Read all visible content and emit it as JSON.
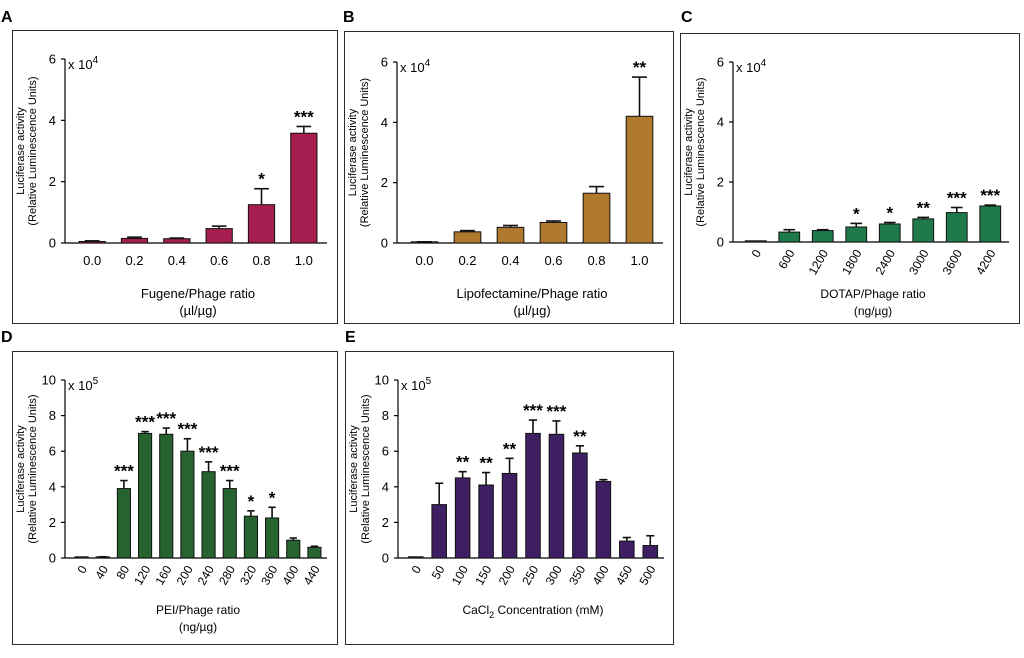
{
  "chart_data": [
    {
      "panel": "A",
      "type": "bar",
      "color": "#a51e4f",
      "categories": [
        "0.0",
        "0.2",
        "0.4",
        "0.6",
        "0.8",
        "1.0"
      ],
      "values": [
        0.05,
        0.15,
        0.14,
        0.47,
        1.25,
        3.58
      ],
      "errors": [
        0.02,
        0.04,
        0.02,
        0.08,
        0.52,
        0.22
      ],
      "significance": [
        "",
        "",
        "",
        "",
        "*",
        "***"
      ],
      "ylim": [
        0,
        6
      ],
      "yticks": [
        "0",
        "2",
        "4",
        "6"
      ],
      "ylabel": "Luciferase activity",
      "ylabel2": "(Relative Luminescence Units)",
      "scale_label": "x 10",
      "scale_exp": "4",
      "xlabel": "Fugene/Phage ratio",
      "xlabel2": "(µl/µg)",
      "rotate_ticks": false
    },
    {
      "panel": "B",
      "type": "bar",
      "color": "#b07a2e",
      "categories": [
        "0.0",
        "0.2",
        "0.4",
        "0.6",
        "0.8",
        "1.0"
      ],
      "values": [
        0.03,
        0.37,
        0.52,
        0.68,
        1.65,
        4.2
      ],
      "errors": [
        0.01,
        0.04,
        0.06,
        0.05,
        0.22,
        1.3
      ],
      "significance": [
        "",
        "",
        "",
        "",
        "",
        "**"
      ],
      "ylim": [
        0,
        6
      ],
      "yticks": [
        "0",
        "2",
        "4",
        "6"
      ],
      "ylabel": "Luciferase activity",
      "ylabel2": "(Relative Luminescence Units)",
      "scale_label": "x 10",
      "scale_exp": "4",
      "xlabel": "Lipofectamine/Phage ratio",
      "xlabel2": "(µl/µg)",
      "rotate_ticks": false
    },
    {
      "panel": "C",
      "type": "bar",
      "color": "#1f7a4a",
      "categories": [
        "0",
        "600",
        "1200",
        "1800",
        "2400",
        "3000",
        "3600",
        "4200"
      ],
      "values": [
        0.0,
        0.33,
        0.38,
        0.5,
        0.6,
        0.77,
        0.98,
        1.2
      ],
      "errors": [
        0.0,
        0.08,
        0.03,
        0.12,
        0.05,
        0.05,
        0.17,
        0.03
      ],
      "significance": [
        "",
        "",
        "",
        "*",
        "*",
        "**",
        "***",
        "***"
      ],
      "ylim": [
        0,
        6
      ],
      "yticks": [
        "0",
        "2",
        "4",
        "6"
      ],
      "ylabel": "Luciferase activity",
      "ylabel2": "(Relative Luminescence Units)",
      "scale_label": "x 10",
      "scale_exp": "4",
      "xlabel": "DOTAP/Phage ratio",
      "xlabel2": "(ng/µg)",
      "rotate_ticks": true
    },
    {
      "panel": "D",
      "type": "bar",
      "color": "#27632f",
      "categories": [
        "0",
        "40",
        "80",
        "120",
        "160",
        "200",
        "240",
        "280",
        "320",
        "360",
        "400",
        "440"
      ],
      "values": [
        0.0,
        0.05,
        3.9,
        7.0,
        6.95,
        6.0,
        4.85,
        3.9,
        2.35,
        2.25,
        1.0,
        0.6
      ],
      "errors": [
        0.0,
        0.02,
        0.45,
        0.1,
        0.35,
        0.7,
        0.55,
        0.45,
        0.3,
        0.6,
        0.12,
        0.06
      ],
      "significance": [
        "",
        "",
        "***",
        "***",
        "***",
        "***",
        "***",
        "***",
        "*",
        "*",
        "",
        ""
      ],
      "ylim": [
        0,
        10
      ],
      "yticks": [
        "0",
        "2",
        "4",
        "6",
        "8",
        "10"
      ],
      "ylabel": "Luciferase activity",
      "ylabel2": "(Relative Luminescence Units)",
      "scale_label": "x 10",
      "scale_exp": "5",
      "xlabel": "PEI/Phage ratio",
      "xlabel2": "(ng/µg)",
      "rotate_ticks": true
    },
    {
      "panel": "E",
      "type": "bar",
      "color": "#3e1f63",
      "categories": [
        "0",
        "50",
        "100",
        "150",
        "200",
        "250",
        "300",
        "350",
        "400",
        "450",
        "500"
      ],
      "values": [
        0.0,
        3.0,
        4.5,
        4.1,
        4.75,
        7.0,
        6.95,
        5.9,
        4.3,
        0.95,
        0.7
      ],
      "errors": [
        0.0,
        1.2,
        0.35,
        0.7,
        0.85,
        0.75,
        0.75,
        0.4,
        0.1,
        0.2,
        0.55
      ],
      "significance": [
        "",
        "",
        "**",
        "**",
        "**",
        "***",
        "***",
        "**",
        "",
        "",
        ""
      ],
      "ylim": [
        0,
        10
      ],
      "yticks": [
        "0",
        "2",
        "4",
        "6",
        "8",
        "10"
      ],
      "ylabel": "Luciferase activity",
      "ylabel2": "(Relative Luminescence Units)",
      "scale_label": "x 10",
      "scale_exp": "5",
      "xlabel": "CaCl",
      "xlabel_sub": "2",
      "xlabel_rest": " Concentration (mM)",
      "xlabel2": "",
      "rotate_ticks": true
    }
  ]
}
